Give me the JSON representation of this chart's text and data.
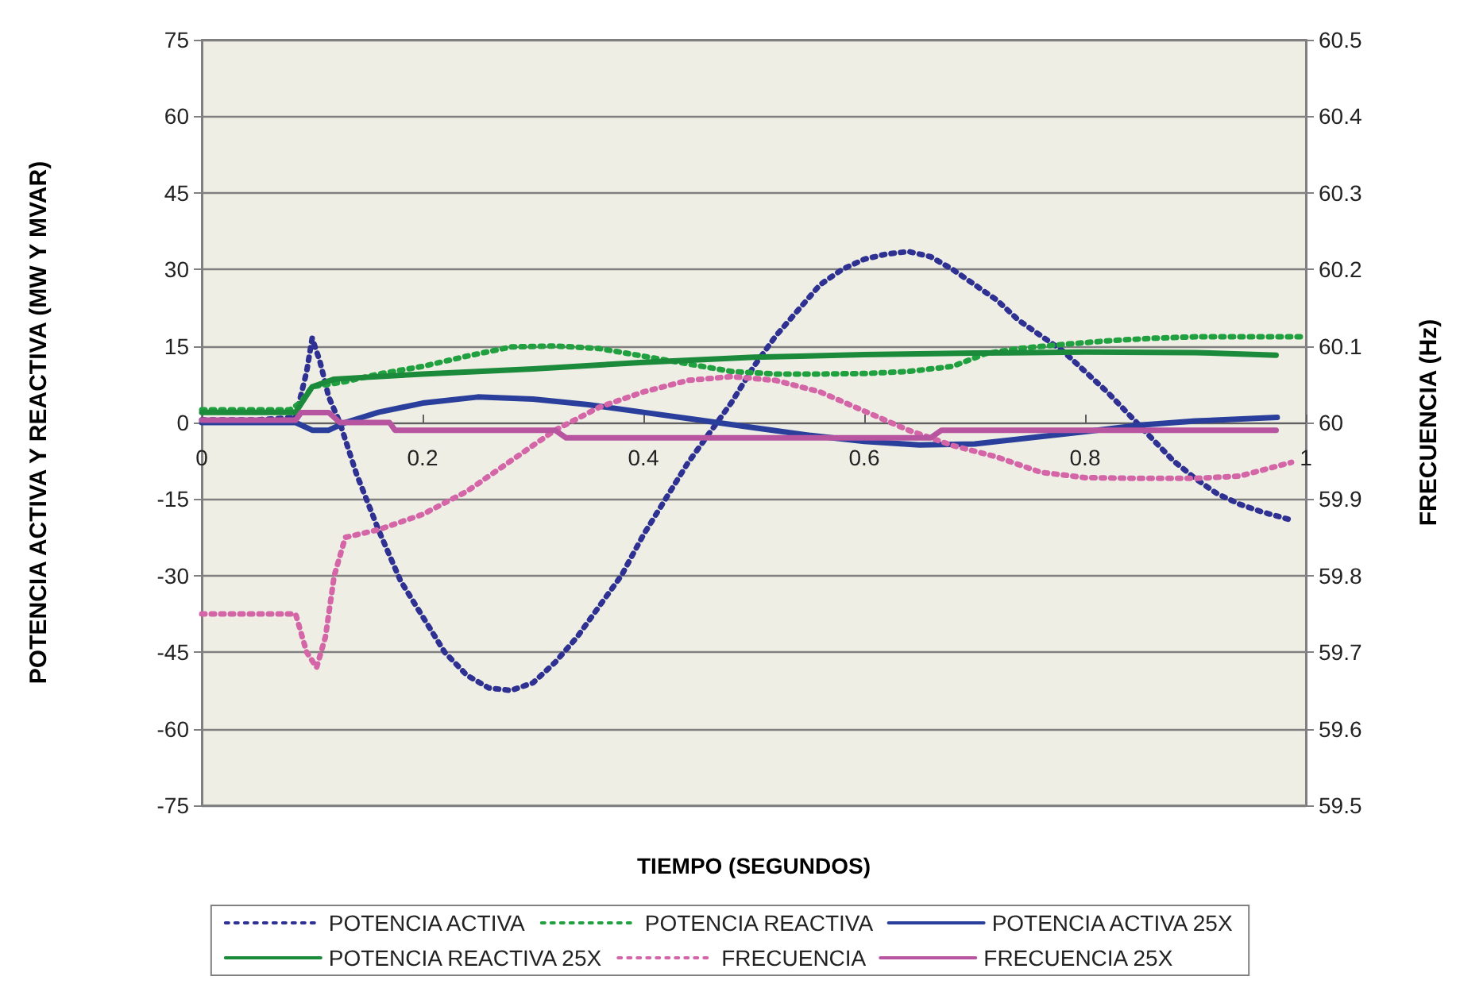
{
  "chart_data": {
    "type": "line",
    "xlabel": "TIEMPO (SEGUNDOS)",
    "ylabel": "POTENCIA ACTIVA Y REACTIVA (MW Y MVAR)",
    "y2label": "FRECUENCIA (Hz)",
    "xlim": [
      0,
      1
    ],
    "xticks": [
      0,
      0.2,
      0.4,
      0.6,
      0.8,
      1
    ],
    "ylim": [
      -75,
      75
    ],
    "yticks": [
      -75,
      -60,
      -45,
      -30,
      -15,
      0,
      15,
      30,
      45,
      60,
      75
    ],
    "y2lim": [
      59.5,
      60.5
    ],
    "y2ticks": [
      59.5,
      59.6,
      59.7,
      59.8,
      59.9,
      60,
      60.1,
      60.2,
      60.3,
      60.4,
      60.5
    ],
    "grid": "y",
    "legend": "bottom",
    "marker": "none",
    "series": [
      {
        "name": "POTENCIA ACTIVA",
        "color": "#2e3192",
        "line_style": "dotted",
        "x": [
          0,
          0.05,
          0.085,
          0.095,
          0.1,
          0.107,
          0.115,
          0.125,
          0.14,
          0.16,
          0.18,
          0.2,
          0.22,
          0.24,
          0.26,
          0.28,
          0.3,
          0.32,
          0.34,
          0.36,
          0.38,
          0.4,
          0.42,
          0.44,
          0.46,
          0.48,
          0.5,
          0.52,
          0.54,
          0.56,
          0.58,
          0.6,
          0.62,
          0.64,
          0.66,
          0.68,
          0.7,
          0.72,
          0.74,
          0.76,
          0.78,
          0.8,
          0.82,
          0.84,
          0.86,
          0.88,
          0.9,
          0.92,
          0.94,
          0.96,
          0.985
        ],
        "values": [
          0.5,
          0.5,
          1,
          10,
          16.5,
          12,
          5,
          0,
          -10,
          -21,
          -31,
          -38,
          -45,
          -49.5,
          -52,
          -52.5,
          -51,
          -47,
          -42,
          -36,
          -30,
          -22,
          -15,
          -8,
          -2,
          4,
          11,
          17,
          22,
          27,
          30,
          32,
          33,
          33.5,
          32.5,
          30,
          27,
          24,
          20,
          17,
          14,
          10,
          6,
          1.5,
          -3,
          -7.5,
          -11,
          -14,
          -16,
          -17.5,
          -19
        ]
      },
      {
        "name": "POTENCIA REACTIVA",
        "color": "#21a040",
        "line_style": "dotted",
        "x": [
          0,
          0.08,
          0.09,
          0.1,
          0.13,
          0.16,
          0.2,
          0.24,
          0.28,
          0.32,
          0.36,
          0.4,
          0.44,
          0.48,
          0.52,
          0.56,
          0.6,
          0.64,
          0.68,
          0.71,
          0.74,
          0.78,
          0.82,
          0.86,
          0.9,
          0.95,
          0.995
        ],
        "values": [
          2.5,
          2.5,
          4,
          7,
          8,
          9.5,
          11,
          13,
          14.8,
          15,
          14.5,
          13,
          11.5,
          10,
          9.5,
          9.5,
          9.6,
          10,
          11,
          13.5,
          14.5,
          15.3,
          16,
          16.5,
          16.8,
          16.8,
          16.8
        ]
      },
      {
        "name": "POTENCIA ACTIVA 25X",
        "color": "#2a3f9c",
        "line_style": "solid",
        "x": [
          0,
          0.085,
          0.1,
          0.115,
          0.13,
          0.16,
          0.2,
          0.25,
          0.3,
          0.35,
          0.4,
          0.45,
          0.5,
          0.55,
          0.6,
          0.65,
          0.7,
          0.75,
          0.8,
          0.85,
          0.9,
          0.974
        ],
        "values": [
          0,
          0,
          -1.5,
          -1.5,
          0,
          2,
          3.8,
          5,
          4.6,
          3.5,
          2,
          0.5,
          -1,
          -2.5,
          -3.7,
          -4.4,
          -4.2,
          -3,
          -1.8,
          -0.5,
          0.3,
          1
        ]
      },
      {
        "name": "POTENCIA REACTIVA 25X",
        "color": "#1b8a3a",
        "line_style": "solid",
        "x": [
          0,
          0.085,
          0.1,
          0.12,
          0.2,
          0.3,
          0.4,
          0.5,
          0.6,
          0.7,
          0.8,
          0.9,
          0.973
        ],
        "values": [
          2,
          2,
          7,
          8.5,
          9.5,
          10.5,
          11.8,
          12.8,
          13.3,
          13.6,
          13.8,
          13.7,
          13.2
        ]
      },
      {
        "name": "FRECUENCIA",
        "color": "#d466a8",
        "line_style": "dotted",
        "axis": "y2",
        "x": [
          0,
          0.085,
          0.095,
          0.104,
          0.112,
          0.12,
          0.13,
          0.16,
          0.2,
          0.24,
          0.28,
          0.32,
          0.36,
          0.4,
          0.44,
          0.48,
          0.52,
          0.56,
          0.6,
          0.64,
          0.68,
          0.72,
          0.76,
          0.8,
          0.85,
          0.9,
          0.94,
          0.987
        ],
        "values": [
          59.75,
          59.75,
          59.7,
          59.68,
          59.72,
          59.8,
          59.85,
          59.86,
          59.88,
          59.91,
          59.95,
          59.99,
          60.02,
          60.04,
          60.055,
          60.06,
          60.055,
          60.04,
          60.015,
          59.99,
          59.97,
          59.955,
          59.935,
          59.928,
          59.927,
          59.927,
          59.93,
          59.948
        ]
      },
      {
        "name": "FRECUENCIA 25X",
        "color": "#b855a0",
        "line_style": "solid",
        "axis": "y2",
        "x": [
          0,
          0.085,
          0.09,
          0.115,
          0.125,
          0.17,
          0.175,
          0.32,
          0.33,
          0.66,
          0.67,
          0.973
        ],
        "values": [
          60.003,
          60.003,
          60.013,
          60.013,
          60,
          60,
          59.99,
          59.99,
          59.98,
          59.98,
          59.99,
          59.99
        ]
      }
    ]
  }
}
